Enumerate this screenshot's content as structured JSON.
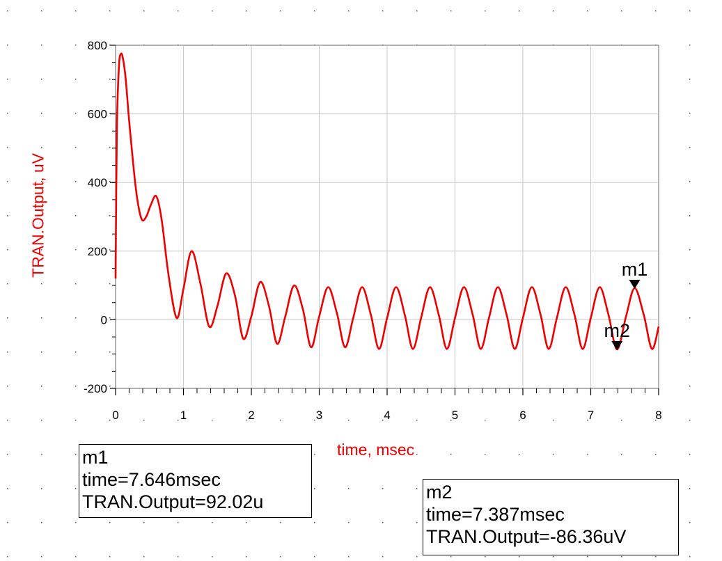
{
  "chart_data": {
    "type": "line",
    "title": "",
    "xlabel": "time, msec",
    "ylabel": "TRAN.Output, uV",
    "xlim": [
      0,
      8
    ],
    "ylim": [
      -200,
      800
    ],
    "x_ticks": [
      "0",
      "1",
      "2",
      "3",
      "4",
      "5",
      "6",
      "7",
      "8"
    ],
    "y_ticks": [
      "-200",
      "0",
      "200",
      "400",
      "600",
      "800"
    ],
    "grid": true,
    "series": [
      {
        "color": "#ee0000",
        "x": [
          0,
          0.02,
          0.05,
          0.08,
          0.11,
          0.15,
          0.2,
          0.3,
          0.38,
          0.45,
          0.52,
          0.6,
          0.68,
          0.78,
          0.9,
          1.0,
          1.12,
          1.25,
          1.38,
          1.5,
          1.63,
          1.76,
          1.88,
          2.0,
          2.13,
          2.26,
          2.38,
          2.5,
          2.63,
          2.76,
          2.88,
          3.0,
          3.13,
          3.26,
          3.38,
          3.5,
          3.63,
          3.76,
          3.88,
          4.0,
          4.13,
          4.26,
          4.38,
          4.5,
          4.63,
          4.76,
          4.88,
          5.0,
          5.13,
          5.26,
          5.38,
          5.5,
          5.63,
          5.76,
          5.88,
          6.0,
          6.13,
          6.26,
          6.38,
          6.5,
          6.63,
          6.76,
          6.88,
          7.0,
          7.13,
          7.26,
          7.387,
          7.52,
          7.646,
          7.78,
          7.9,
          8.0
        ],
        "y": [
          120,
          560,
          740,
          775,
          760,
          700,
          580,
          380,
          295,
          300,
          335,
          360,
          290,
          130,
          5,
          90,
          200,
          105,
          -20,
          40,
          135,
          70,
          -55,
          10,
          110,
          40,
          -70,
          10,
          100,
          30,
          -80,
          10,
          95,
          20,
          -80,
          5,
          95,
          15,
          -85,
          5,
          95,
          15,
          -85,
          5,
          95,
          15,
          -85,
          5,
          95,
          15,
          -85,
          5,
          95,
          15,
          -85,
          5,
          95,
          15,
          -85,
          5,
          95,
          15,
          -85,
          5,
          95,
          15,
          -86.36,
          10,
          92.02,
          15,
          -85,
          -20
        ]
      }
    ],
    "markers": [
      {
        "name": "m1",
        "x": 7.646,
        "y": 92.02
      },
      {
        "name": "m2",
        "x": 7.387,
        "y": -86.36
      }
    ]
  },
  "marker_readouts": {
    "m1": {
      "name": "m1",
      "time": "time=7.646msec",
      "value": "TRAN.Output=92.02u"
    },
    "m2": {
      "name": "m2",
      "time": "time=7.387msec",
      "value": "TRAN.Output=-86.36uV"
    }
  }
}
